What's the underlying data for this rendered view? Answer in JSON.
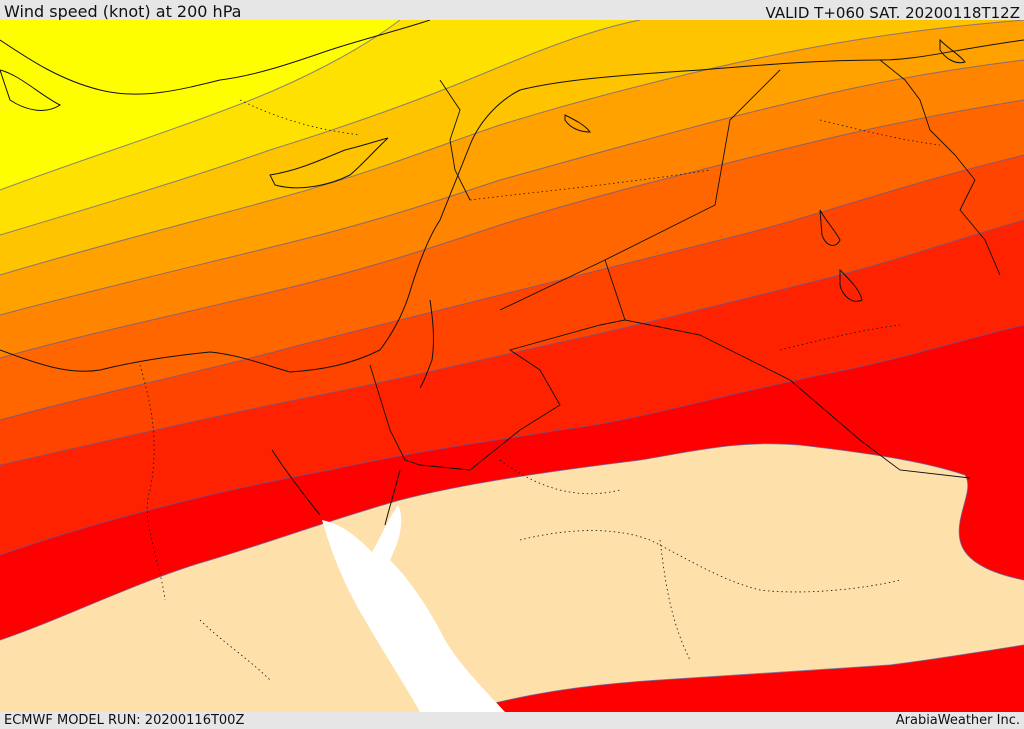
{
  "header": {
    "title": "Wind speed (knot) at 200 hPa",
    "valid": "VALID T+060 SAT. 20200118T12Z"
  },
  "footer": {
    "model_run": "ECMWF MODEL RUN: 20200116T00Z",
    "credit": "ArabiaWeather Inc."
  },
  "map": {
    "product": "wind-speed-200hpa",
    "region": "Eastern Mediterranean and Middle East",
    "wind_speed_bands_colors": [
      "#fffe00",
      "#ffe100",
      "#ffc400",
      "#ffa200",
      "#ff8400",
      "#ff6600",
      "#ff4400",
      "#ff2200",
      "#ff0000"
    ],
    "low_wind_fill": "#fee0ab",
    "sea_fill": "#ffffff",
    "contour_color": "#5a5aa0",
    "boundary_color": "#111111"
  }
}
